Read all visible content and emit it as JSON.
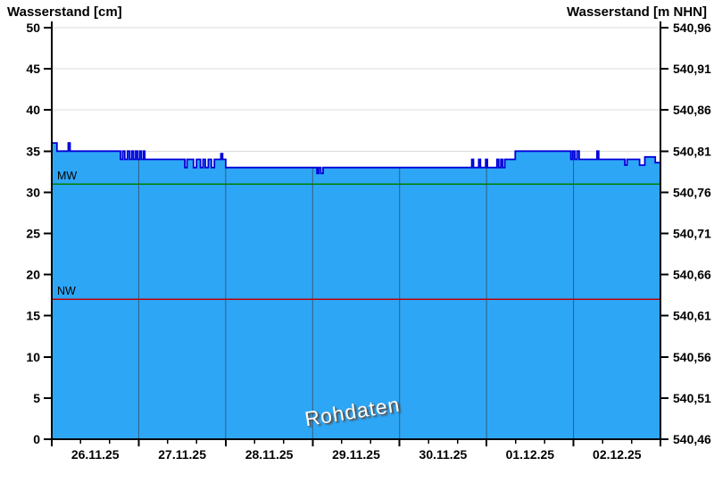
{
  "titles": {
    "left_axis": "Wasserstand [cm]",
    "right_axis": "Wasserstand [m NHN]"
  },
  "watermark": "Rohdaten",
  "chart_data": {
    "type": "area",
    "title": "",
    "x_axis": {
      "dates": [
        "26.11.25",
        "27.11.25",
        "28.11.25",
        "29.11.25",
        "30.11.25",
        "01.12.25",
        "02.12.25"
      ],
      "range_days": [
        0,
        7
      ],
      "minor_ticks_per_day": 3
    },
    "y_axis_left": {
      "label": "Wasserstand [cm]",
      "lim": [
        0,
        50
      ],
      "tick_step": 5,
      "tick_labels": [
        "0",
        "5",
        "10",
        "15",
        "20",
        "25",
        "30",
        "35",
        "40",
        "45",
        "50"
      ]
    },
    "y_axis_right": {
      "label": "Wasserstand [m NHN]",
      "tick_labels": [
        "540,46",
        "540,51",
        "540,56",
        "540,61",
        "540,66",
        "540,71",
        "540,76",
        "540,81",
        "540,86",
        "540,91",
        "540,96"
      ],
      "base_m_nhn": 540.46,
      "m_per_cm": 0.01
    },
    "series": [
      {
        "name": "Wasserstand Rohdaten",
        "line_color": "#0000d8",
        "fill_color": "#2ea6f6",
        "points_day_cm": [
          [
            0,
            36
          ],
          [
            0.06,
            35
          ],
          [
            0.19,
            36
          ],
          [
            0.21,
            35
          ],
          [
            0.79,
            34
          ],
          [
            0.815,
            35
          ],
          [
            0.84,
            34
          ],
          [
            0.87,
            35
          ],
          [
            0.895,
            34
          ],
          [
            0.92,
            35
          ],
          [
            0.94,
            34
          ],
          [
            0.965,
            35
          ],
          [
            0.985,
            34
          ],
          [
            1.01,
            35
          ],
          [
            1.03,
            34
          ],
          [
            1.055,
            35
          ],
          [
            1.07,
            34
          ],
          [
            1.53,
            33
          ],
          [
            1.555,
            34
          ],
          [
            1.63,
            33
          ],
          [
            1.665,
            34
          ],
          [
            1.71,
            33
          ],
          [
            1.74,
            34
          ],
          [
            1.765,
            33
          ],
          [
            1.8,
            34
          ],
          [
            1.835,
            33
          ],
          [
            1.87,
            34
          ],
          [
            1.945,
            34.7
          ],
          [
            1.965,
            34
          ],
          [
            2.0,
            33
          ],
          [
            3.05,
            32.3
          ],
          [
            3.07,
            33
          ],
          [
            3.095,
            32.3
          ],
          [
            3.12,
            33
          ],
          [
            4.83,
            34
          ],
          [
            4.85,
            33
          ],
          [
            4.91,
            34
          ],
          [
            4.93,
            33
          ],
          [
            4.99,
            34
          ],
          [
            5.01,
            33
          ],
          [
            5.12,
            34
          ],
          [
            5.14,
            33
          ],
          [
            5.165,
            34
          ],
          [
            5.185,
            33
          ],
          [
            5.21,
            34
          ],
          [
            5.33,
            35
          ],
          [
            5.97,
            34
          ],
          [
            5.99,
            35
          ],
          [
            6.015,
            34
          ],
          [
            6.04,
            35
          ],
          [
            6.065,
            34
          ],
          [
            6.27,
            35
          ],
          [
            6.29,
            34
          ],
          [
            6.59,
            33.3
          ],
          [
            6.615,
            34
          ],
          [
            6.76,
            33.3
          ],
          [
            6.82,
            34.3
          ],
          [
            6.94,
            33.6
          ],
          [
            7,
            33.6
          ]
        ]
      }
    ],
    "reference_lines": [
      {
        "label": "MW",
        "value_cm": 31,
        "color": "#008000"
      },
      {
        "label": "NW",
        "value_cm": 17,
        "color": "#c00000"
      }
    ],
    "grid": {
      "h_color": "#dcdcdc",
      "v_color": "#2f5f80",
      "v_on_fill_only": true
    },
    "colors": {
      "axis": "#000000",
      "background": "#ffffff",
      "watermark_text": "#ffffff"
    },
    "legend": "none"
  }
}
